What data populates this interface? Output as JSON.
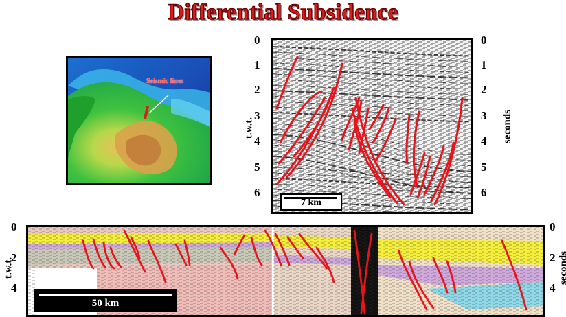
{
  "title": "Differential Subsidence",
  "map": {
    "label": "Seismic lines"
  },
  "upper_section": {
    "left_axis_ticks": [
      "0",
      "1",
      "2",
      "3",
      "4",
      "5",
      "6"
    ],
    "right_axis_ticks": [
      "0",
      "1",
      "2",
      "3",
      "4",
      "5",
      "6"
    ],
    "left_axis_label": "t.w.t.",
    "right_axis_label": "seconds",
    "scale_bar": "7 km"
  },
  "lower_section": {
    "left_axis_ticks": [
      "0",
      "2",
      "4"
    ],
    "right_axis_ticks": [
      "0",
      "2",
      "4"
    ],
    "left_axis_label": "t.w.t.",
    "right_axis_label": "seconds",
    "scale_bar": "50 km"
  },
  "colors": {
    "fault": "#e8141c",
    "title": "#d91c1c"
  }
}
